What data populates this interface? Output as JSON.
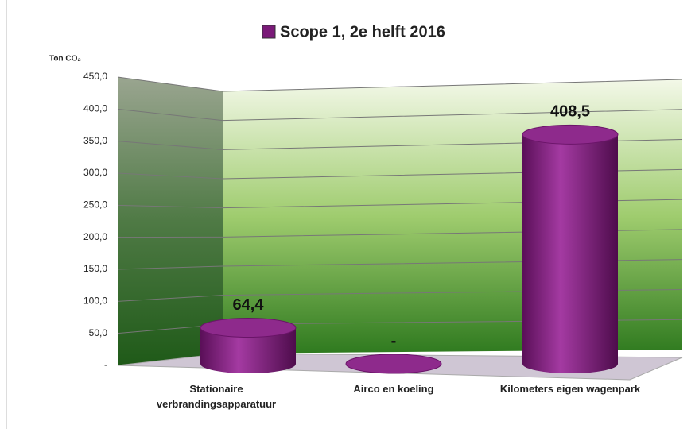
{
  "chart_data": {
    "type": "bar3d",
    "legend_name": "Scope 1, 2e helft 2016",
    "y_label": "Ton CO₂",
    "color": "#7a1a78",
    "categories": [
      "Stationaire verbrandingsapparatuur",
      "Airco en koeling",
      "Kilometers eigen wagenpark"
    ],
    "values": [
      64.4,
      0,
      408.5
    ],
    "value_labels": [
      "64,4",
      "-",
      "408,5"
    ],
    "ylim": [
      0,
      450
    ],
    "yticks": [
      {
        "value": 0,
        "label": "-"
      },
      {
        "value": 50,
        "label": "50,0"
      },
      {
        "value": 100,
        "label": "100,0"
      },
      {
        "value": 150,
        "label": "150,0"
      },
      {
        "value": 200,
        "label": "200,0"
      },
      {
        "value": 250,
        "label": "250,0"
      },
      {
        "value": 300,
        "label": "300,0"
      },
      {
        "value": 350,
        "label": "350,0"
      },
      {
        "value": 400,
        "label": "400,0"
      },
      {
        "value": 450,
        "label": "450,0"
      }
    ],
    "grid": true
  }
}
